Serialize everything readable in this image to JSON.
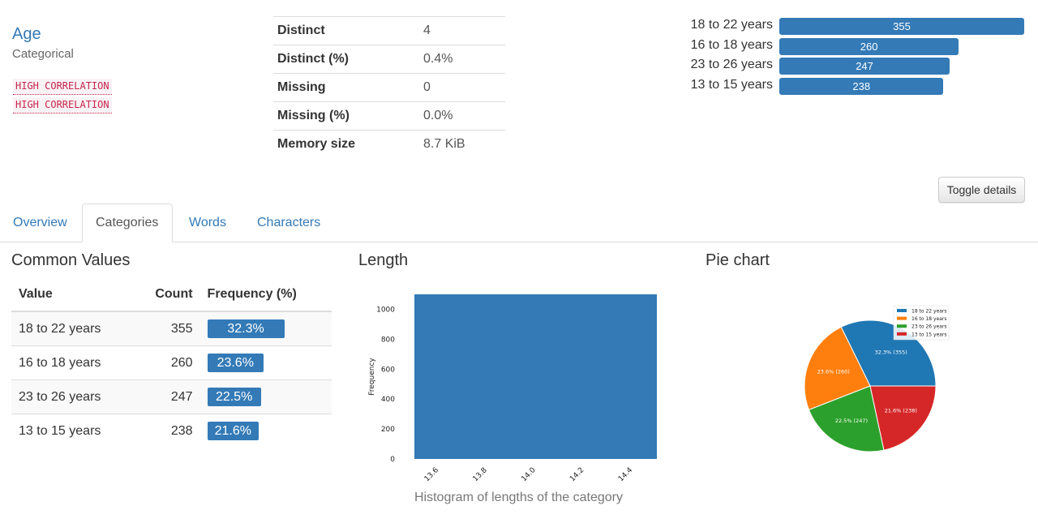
{
  "variable": {
    "name": "Age",
    "type": "Categorical",
    "alerts": [
      "HIGH CORRELATION",
      "HIGH CORRELATION"
    ]
  },
  "stats": [
    {
      "label": "Distinct",
      "value": "4"
    },
    {
      "label": "Distinct (%)",
      "value": "0.4%"
    },
    {
      "label": "Missing",
      "value": "0"
    },
    {
      "label": "Missing (%)",
      "value": "0.0%"
    },
    {
      "label": "Memory size",
      "value": "8.7 KiB"
    }
  ],
  "mini_bars": [
    {
      "label": "18 to 22 years",
      "count": "355",
      "value": 355
    },
    {
      "label": "16 to 18 years",
      "count": "260",
      "value": 260
    },
    {
      "label": "23 to 26 years",
      "count": "247",
      "value": 247
    },
    {
      "label": "13 to 15 years",
      "count": "238",
      "value": 238
    }
  ],
  "toggle_label": "Toggle details",
  "tabs": [
    {
      "label": "Overview",
      "active": false
    },
    {
      "label": "Categories",
      "active": true
    },
    {
      "label": "Words",
      "active": false
    },
    {
      "label": "Characters",
      "active": false
    }
  ],
  "common_values": {
    "title": "Common Values",
    "headers": {
      "value": "Value",
      "count": "Count",
      "freq": "Frequency (%)"
    },
    "rows": [
      {
        "value": "18 to 22 years",
        "count": "355",
        "freq": "32.3%",
        "pct": 32.3
      },
      {
        "value": "16 to 18 years",
        "count": "260",
        "freq": "23.6%",
        "pct": 23.6
      },
      {
        "value": "23 to 26 years",
        "count": "247",
        "freq": "22.5%",
        "pct": 22.5
      },
      {
        "value": "13 to 15 years",
        "count": "238",
        "freq": "21.6%",
        "pct": 21.6
      }
    ]
  },
  "length_section": {
    "title": "Length",
    "caption": "Histogram of lengths of the category"
  },
  "pie_section": {
    "title": "Pie chart"
  },
  "colors": {
    "accent": "#337ab7",
    "pie": [
      "#1f77b4",
      "#ff7f0e",
      "#2ca02c",
      "#d62728"
    ]
  },
  "chart_data": [
    {
      "type": "bar",
      "title": "",
      "xlabel": "",
      "ylabel": "Frequency",
      "x_ticks": [
        "13.6",
        "13.8",
        "14.0",
        "14.2",
        "14.4"
      ],
      "y_ticks": [
        "0",
        "200",
        "400",
        "600",
        "800",
        "1000"
      ],
      "bins": [
        {
          "x0": 13.5,
          "x1": 14.5,
          "value": 1100
        }
      ],
      "xlim": [
        13.5,
        14.5
      ],
      "ylim": [
        0,
        1100
      ],
      "grid": false
    },
    {
      "type": "pie",
      "title": "",
      "labels": [
        "18 to 22 years",
        "16 to 18 years",
        "23 to 26 years",
        "13 to 15 years"
      ],
      "values": [
        355,
        260,
        247,
        238
      ],
      "slice_labels": [
        "32.3%  (355)",
        "23.6%  (260)",
        "22.5%  (247)",
        "21.6%  (238)"
      ],
      "legend": "top-right"
    }
  ]
}
